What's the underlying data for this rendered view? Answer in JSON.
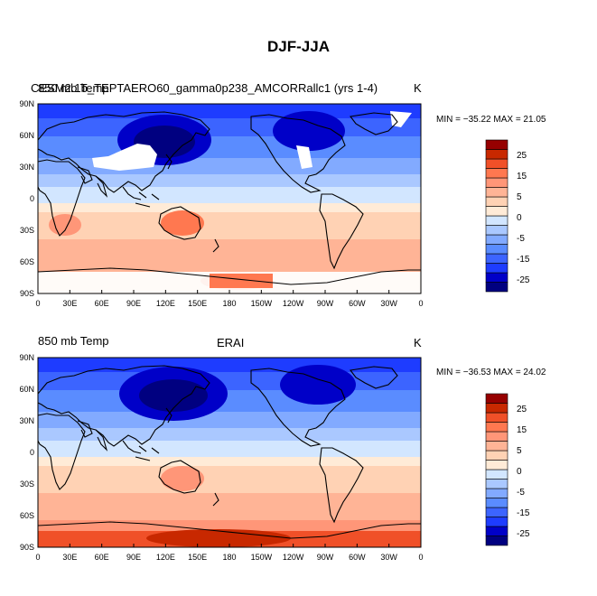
{
  "title": "DJF-JJA",
  "colors": {
    "levels": [
      "#000080",
      "#0000c8",
      "#1e3cff",
      "#3c64ff",
      "#5a8cff",
      "#82aaff",
      "#aac8ff",
      "#d2e6ff",
      "#ffebd7",
      "#ffd2b4",
      "#ffb496",
      "#ff9678",
      "#ff7850",
      "#f05028",
      "#c82800",
      "#960000"
    ],
    "coast": "#000000"
  },
  "colorbar": {
    "labels": [
      "25",
      "15",
      "5",
      "0",
      "-5",
      "-15",
      "-25"
    ]
  },
  "axes": {
    "lat_labels": [
      "90N",
      "60N",
      "30N",
      "0",
      "30S",
      "60S",
      "90S"
    ],
    "lon_labels": [
      "0",
      "30E",
      "60E",
      "90E",
      "120E",
      "150E",
      "180",
      "150W",
      "120W",
      "90W",
      "60W",
      "30W",
      "0"
    ]
  },
  "panels": [
    {
      "left_label": "850 mb Temp",
      "center_label": "CESM2.1b_TEPTAERO60_gamma0p238_AMCORRallc1 (yrs 1-4)",
      "right_label": "K",
      "minmax": "MIN = −35.22  MAX =  21.05"
    },
    {
      "left_label": "850 mb Temp",
      "center_label": "ERAI",
      "right_label": "K",
      "minmax": "MIN = −36.53  MAX =  24.02"
    }
  ]
}
